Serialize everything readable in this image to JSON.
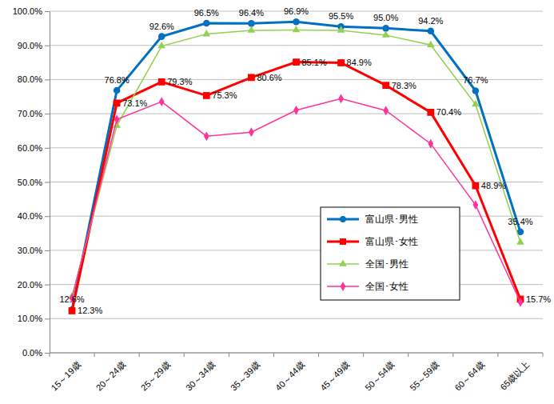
{
  "chart_data": {
    "type": "line",
    "categories": [
      "15～19歳",
      "20～24歳",
      "25～29歳",
      "30～34歳",
      "35～39歳",
      "40～44歳",
      "45～49歳",
      "50～54歳",
      "55～59歳",
      "60～64歳",
      "65歳以上"
    ],
    "series": [
      {
        "name": "富山県･男性",
        "color": "#0070c0",
        "marker": "circle",
        "data_labels": true,
        "values": [
          12.6,
          76.8,
          92.6,
          96.5,
          96.4,
          96.9,
          95.5,
          95.0,
          94.2,
          76.7,
          35.4
        ],
        "value_labels": [
          "12.6%",
          "76.8%",
          "92.6%",
          "96.5%",
          "96.4%",
          "96.9%",
          "95.5%",
          "95.0%",
          "94.2%",
          "76.7%",
          "35.4%"
        ]
      },
      {
        "name": "富山県･女性",
        "color": "#ff0000",
        "marker": "square",
        "data_labels": true,
        "values": [
          12.3,
          73.1,
          79.3,
          75.3,
          80.6,
          85.1,
          84.9,
          78.3,
          70.4,
          48.9,
          15.7
        ],
        "value_labels": [
          "12.3%",
          "73.1%",
          "79.3%",
          "75.3%",
          "80.6%",
          "85.1%",
          "84.9%",
          "78.3%",
          "70.4%",
          "48.9%",
          "15.7%"
        ]
      },
      {
        "name": "全国･男性",
        "color": "#92d050",
        "marker": "triangle",
        "data_labels": false,
        "values": [
          16.5,
          66.5,
          89.8,
          93.3,
          94.4,
          94.5,
          94.4,
          93.0,
          90.1,
          72.7,
          32.3
        ]
      },
      {
        "name": "全国･女性",
        "color": "#ff3399",
        "marker": "diamond",
        "data_labels": false,
        "values": [
          16.0,
          68.3,
          73.5,
          63.4,
          64.6,
          71.0,
          74.4,
          70.9,
          61.2,
          43.3,
          14.8
        ]
      }
    ],
    "ylim": [
      0,
      100
    ],
    "yticks": [
      {
        "value": 0,
        "label": "0.0%"
      },
      {
        "value": 10,
        "label": "10.0%"
      },
      {
        "value": 20,
        "label": "20.0%"
      },
      {
        "value": 30,
        "label": "30.0%"
      },
      {
        "value": 40,
        "label": "40.0%"
      },
      {
        "value": 50,
        "label": "50.0%"
      },
      {
        "value": 60,
        "label": "60.0%"
      },
      {
        "value": 70,
        "label": "70.0%"
      },
      {
        "value": 80,
        "label": "80.0%"
      },
      {
        "value": 90,
        "label": "90.0%"
      },
      {
        "value": 100,
        "label": "100.0%"
      }
    ],
    "grid": true,
    "legend": "right"
  }
}
